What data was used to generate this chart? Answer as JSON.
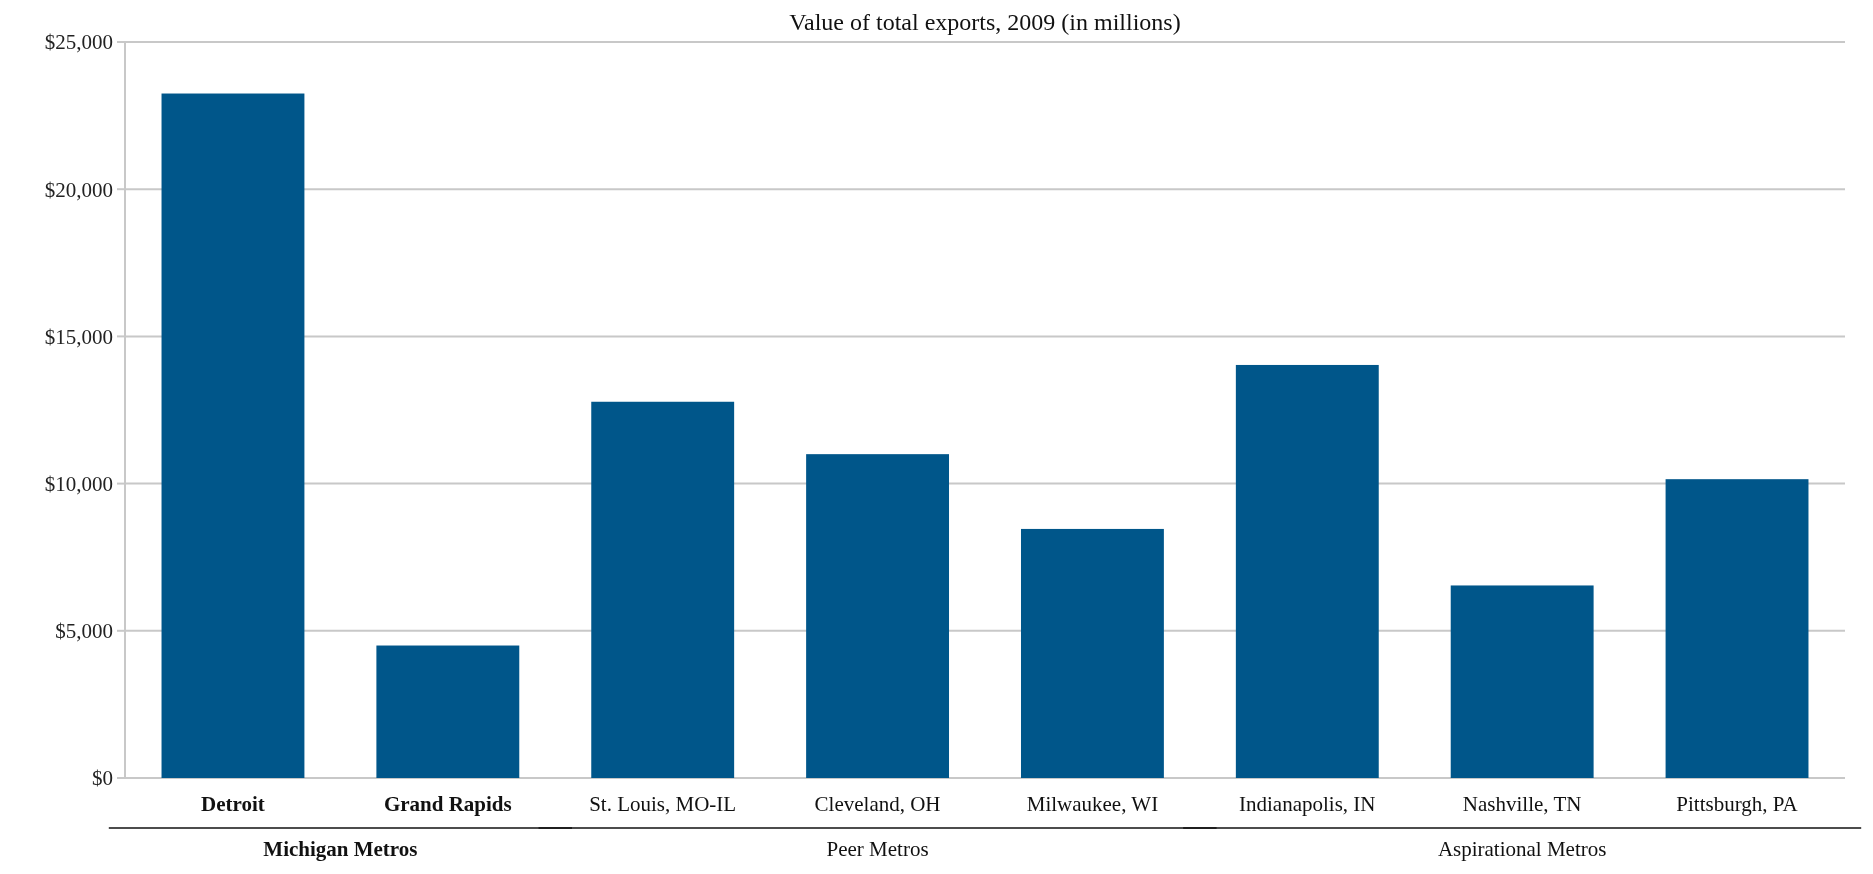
{
  "chart_data": {
    "type": "bar",
    "title": "Value of total exports, 2009 (in millions)",
    "categories": [
      "Detroit",
      "Grand Rapids",
      "St. Louis, MO-IL",
      "Cleveland, OH",
      "Milwaukee, WI",
      "Indianapolis, IN",
      "Nashville, TN",
      "Pittsburgh, PA"
    ],
    "values": [
      23250,
      4500,
      12780,
      11000,
      8460,
      14030,
      6540,
      10150
    ],
    "color": "#00568a",
    "ylim": [
      0,
      25000
    ],
    "yticks": [
      {
        "value": 0,
        "label": "$0"
      },
      {
        "value": 5000,
        "label": "$5,000"
      },
      {
        "value": 10000,
        "label": "$10,000"
      },
      {
        "value": 15000,
        "label": "$15,000"
      },
      {
        "value": 20000,
        "label": "$20,000"
      },
      {
        "value": 25000,
        "label": "$25,000"
      }
    ],
    "grid": "y",
    "annotations": [
      "Michigan Metros",
      "Peer Metros",
      "Aspirational Metros"
    ]
  }
}
